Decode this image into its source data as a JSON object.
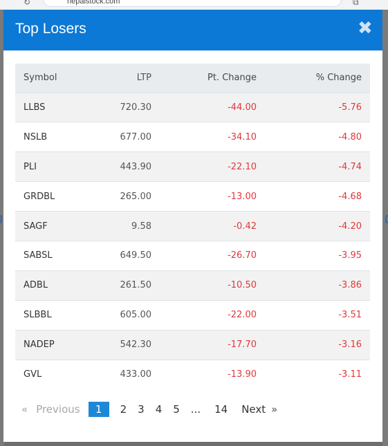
{
  "browser": {
    "url": "nepalstock.com"
  },
  "modal": {
    "title": "Top Losers",
    "close_glyph": "✖"
  },
  "table": {
    "headers": [
      "Symbol",
      "LTP",
      "Pt. Change",
      "% Change"
    ],
    "rows": [
      [
        "LLBS",
        "720.30",
        "-44.00",
        "-5.76"
      ],
      [
        "NSLB",
        "677.00",
        "-34.10",
        "-4.80"
      ],
      [
        "PLI",
        "443.90",
        "-22.10",
        "-4.74"
      ],
      [
        "GRDBL",
        "265.00",
        "-13.00",
        "-4.68"
      ],
      [
        "SAGF",
        "9.58",
        "-0.42",
        "-4.20"
      ],
      [
        "SABSL",
        "649.50",
        "-26.70",
        "-3.95"
      ],
      [
        "ADBL",
        "261.50",
        "-10.50",
        "-3.86"
      ],
      [
        "SLBBL",
        "605.00",
        "-22.00",
        "-3.51"
      ],
      [
        "NADEP",
        "542.30",
        "-17.70",
        "-3.16"
      ],
      [
        "GVL",
        "433.00",
        "-13.90",
        "-3.11"
      ]
    ]
  },
  "pagination": {
    "laquo": "«",
    "previous": "Previous",
    "pages": [
      "1",
      "2",
      "3",
      "4",
      "5"
    ],
    "active_page": "1",
    "ellipsis": "...",
    "last_page": "14",
    "next": "Next",
    "raquo": "»"
  },
  "colors": {
    "header_bg": "#0c79d6",
    "negative": "#e0383a",
    "active_page_bg": "#1e88d8"
  }
}
